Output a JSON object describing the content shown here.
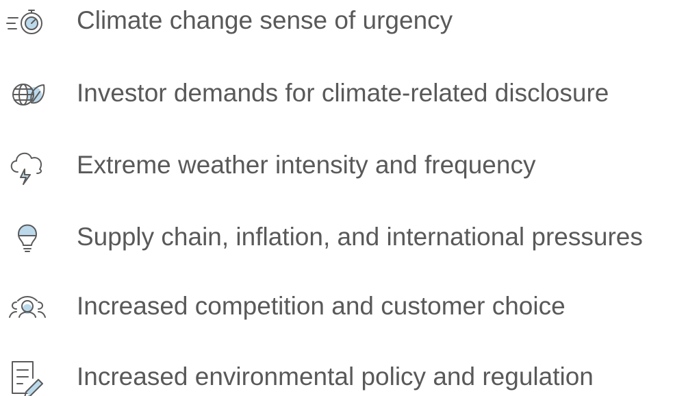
{
  "items": [
    {
      "label": "Climate change sense of urgency"
    },
    {
      "label": "Investor demands for climate-related disclosure"
    },
    {
      "label": "Extreme weather intensity and frequency"
    },
    {
      "label": "Supply chain, inflation, and international pressures"
    },
    {
      "label": "Increased competition and customer choice"
    },
    {
      "label": "Increased environmental policy and regulation"
    }
  ]
}
